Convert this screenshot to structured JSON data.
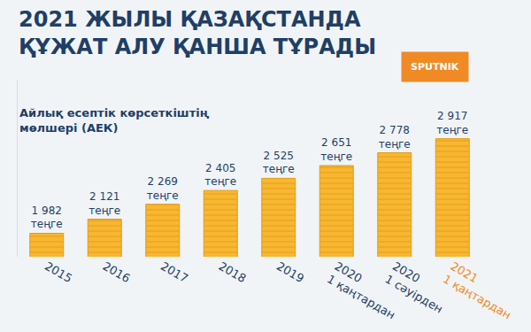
{
  "chart_data": {
    "type": "bar",
    "title": "2021 ЖЫЛЫ ҚАЗАҚСТАНДА\nҚҰЖАТ АЛУ ҚАНША ТҰРАДЫ",
    "subtitle": "Айлық есептік көрсеткіштің\nмөлшері (АЕК)",
    "logo": "SPUTNIK",
    "categories": [
      "2015",
      "2016",
      "2017",
      "2018",
      "2019",
      "2020\n1 қаңтардан",
      "2020\n1 сәуірден",
      "2021\n1 қаңтардан"
    ],
    "values": [
      1982,
      2121,
      2269,
      2405,
      2525,
      2651,
      2778,
      2917
    ],
    "value_labels": [
      "1 982\nтеңге",
      "2 121\nтеңге",
      "2 269\nтеңге",
      "2 405\nтеңге",
      "2 525\nтеңге",
      "2 651\nтеңге",
      "2 778\nтеңге",
      "2 917\nтеңге"
    ],
    "color": "#f7b731",
    "ylim": [
      1750,
      3500
    ],
    "yticks": [],
    "grid": false,
    "data_labels": true,
    "tick_labels": "x"
  }
}
